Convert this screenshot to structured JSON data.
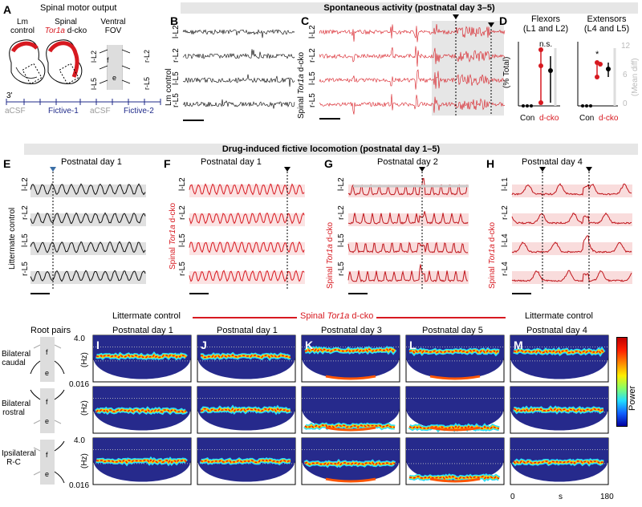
{
  "panel_letters": [
    "A",
    "B",
    "C",
    "D",
    "E",
    "F",
    "G",
    "H",
    "I",
    "J",
    "K",
    "L",
    "M"
  ],
  "panelA": {
    "title": "Spinal motor output",
    "lm_line1": "Lm",
    "lm_line2": "control",
    "spinal_line1": "Spinal",
    "spinal_line2_italic": "Tor1a",
    "spinal_line2_rest": " d-cko",
    "fov_line1": "Ventral",
    "fov_line2": "FOV",
    "cord_labels": [
      "l-L2",
      "r-L2",
      "l-L5",
      "r-L5"
    ],
    "f_label": "f",
    "e_label": "e",
    "three_prime": "3'",
    "timeline": [
      "aCSF",
      "Fictive-1",
      "aCSF",
      "Fictive-2"
    ]
  },
  "banner_top": "Spontaneous activity (postnatal day 3–5)",
  "banner_mid": "Drug-induced fictive locomotion (postnatal day 1–5)",
  "panelB": {
    "row_labels": [
      "l-L2",
      "r-L2",
      "l-L5",
      "r-L5"
    ],
    "side_label": "Lm control"
  },
  "panelC": {
    "row_labels": [
      "l-L2",
      "r-L2",
      "l-L5",
      "r-L5"
    ],
    "side_prefix": "Spinal ",
    "side_italic": "Tor1a",
    "side_suffix": " d-cko"
  },
  "panelD": {
    "flexors_title": "Flexors",
    "flexors_sub": "(L1 and L2)",
    "extensors_title": "Extensors",
    "extensors_sub": "(L4 and L5)",
    "ylabel": "(% Total)",
    "ylabel_right": "(Mean diff)",
    "right_ticks": [
      "12",
      "6",
      "0"
    ],
    "flexor_sig": "n.s.",
    "extensor_sig": "*",
    "xlabels": [
      "Con",
      "d-cko"
    ]
  },
  "panelE": {
    "title": "Postnatal day 1",
    "row_labels": [
      "l-L2",
      "r-L2",
      "l-L5",
      "r-L5"
    ],
    "side_label": "Littermate control"
  },
  "panelF": {
    "title": "Postnatal day 1",
    "row_labels": [
      "l-L2",
      "r-L2",
      "l-L5",
      "r-L5"
    ],
    "side_prefix": "Spinal ",
    "side_italic": "Tor1a",
    "side_suffix": " d-cko"
  },
  "panelG": {
    "title": "Postnatal day 2",
    "row_labels": [
      "l-L2",
      "r-L2",
      "l-L5",
      "r-L5"
    ],
    "side_prefix": "Spinal ",
    "side_italic": "Tor1a",
    "side_suffix": " d-cko"
  },
  "panelH": {
    "title": "Postnatal day 4",
    "row_labels": [
      "l-L1",
      "r-L2",
      "l-L4",
      "r-L4"
    ],
    "side_prefix": "Spinal ",
    "side_italic": "Tor1a",
    "side_suffix": " d-cko"
  },
  "bottom": {
    "group_left": "Littermate control",
    "group_mid_prefix": "Spinal ",
    "group_mid_italic": "Tor1a",
    "group_mid_suffix": " d-cko",
    "group_right": "Littermate control",
    "root_pairs": "Root pairs",
    "column_titles": [
      "Postnatal day 1",
      "Postnatal day 1",
      "Postnatal day 3",
      "Postnatal day 5",
      "Postnatal day 4"
    ],
    "row_labels": [
      [
        "Bilateral",
        "caudal"
      ],
      [
        "Bilateral",
        "rostral"
      ],
      [
        "Ipsilateral",
        "R-C"
      ]
    ],
    "y_top": "4.0",
    "y_bottom": "0.016",
    "y_unit": "(Hz)",
    "x_start": "0",
    "x_unit": "s",
    "x_end": "180",
    "colorbar_label": "Power",
    "f_label": "f",
    "e_label": "e"
  },
  "colors": {
    "red": "#d71920",
    "navy": "#1f2a8a",
    "dark_blue": "#262a8c"
  }
}
